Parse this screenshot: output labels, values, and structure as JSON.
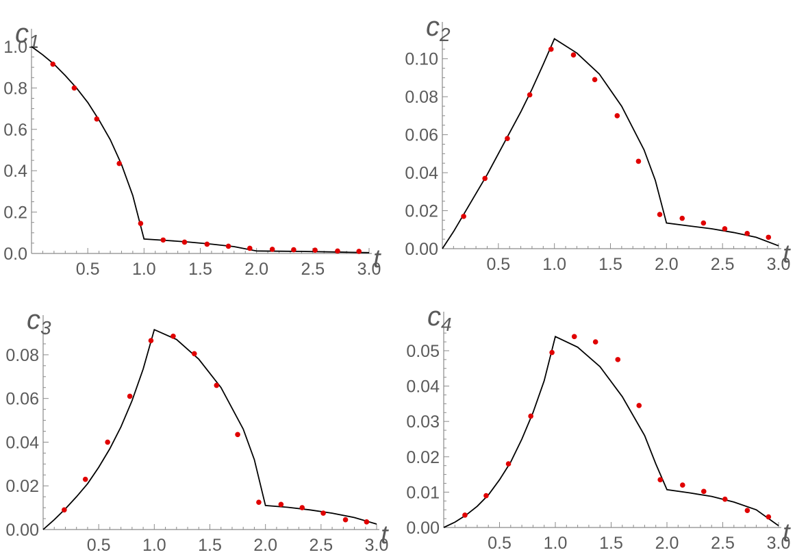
{
  "chart_data": [
    {
      "type": "line",
      "title": "",
      "ylabel": "c",
      "ylabel_sub": "1",
      "xlabel": "t",
      "xlim": [
        0,
        3.0
      ],
      "ylim": [
        0,
        1.0
      ],
      "grid": false,
      "xticks": [
        "0.5",
        "1.0",
        "1.5",
        "2.0",
        "2.5",
        "3.0"
      ],
      "yticks": [
        "0.0",
        "0.2",
        "0.4",
        "0.6",
        "0.8",
        "1.0"
      ],
      "series": [
        {
          "kind": "line",
          "x": [
            0,
            0.1,
            0.2,
            0.3,
            0.4,
            0.5,
            0.6,
            0.7,
            0.8,
            0.9,
            1.0,
            1.0,
            1.2,
            1.4,
            1.6,
            1.8,
            2.0,
            2.0,
            2.2,
            2.4,
            2.6,
            2.8,
            3.0
          ],
          "y": [
            1.0,
            0.96,
            0.915,
            0.86,
            0.8,
            0.73,
            0.645,
            0.55,
            0.43,
            0.28,
            0.07,
            0.07,
            0.063,
            0.055,
            0.045,
            0.033,
            0.012,
            0.012,
            0.011,
            0.01,
            0.008,
            0.006,
            0.004
          ]
        },
        {
          "kind": "scatter",
          "x": [
            0.19,
            0.38,
            0.58,
            0.78,
            0.97,
            1.17,
            1.36,
            1.56,
            1.75,
            1.94,
            2.14,
            2.33,
            2.52,
            2.72,
            2.91
          ],
          "y": [
            0.915,
            0.8,
            0.65,
            0.435,
            0.145,
            0.065,
            0.055,
            0.045,
            0.035,
            0.025,
            0.02,
            0.018,
            0.016,
            0.012,
            0.01
          ]
        }
      ]
    },
    {
      "type": "line",
      "title": "",
      "ylabel": "c",
      "ylabel_sub": "2",
      "xlabel": "t",
      "xlim": [
        0,
        3.0
      ],
      "ylim": [
        0,
        0.11
      ],
      "grid": false,
      "xticks": [
        "0.5",
        "1.0",
        "1.5",
        "2.0",
        "2.5",
        "3.0"
      ],
      "yticks": [
        "0.00",
        "0.02",
        "0.04",
        "0.06",
        "0.08",
        "0.10"
      ],
      "series": [
        {
          "kind": "line",
          "x": [
            0,
            0.1,
            0.2,
            0.3,
            0.4,
            0.5,
            0.6,
            0.7,
            0.8,
            0.9,
            1.0,
            1.2,
            1.4,
            1.6,
            1.8,
            1.9,
            2.0,
            2.2,
            2.4,
            2.6,
            2.8,
            3.0
          ],
          "y": [
            0,
            0.009,
            0.019,
            0.029,
            0.039,
            0.05,
            0.061,
            0.072,
            0.084,
            0.097,
            0.1105,
            0.103,
            0.092,
            0.075,
            0.052,
            0.036,
            0.0135,
            0.012,
            0.0105,
            0.0085,
            0.006,
            0.0015
          ]
        },
        {
          "kind": "scatter",
          "x": [
            0.19,
            0.38,
            0.58,
            0.78,
            0.97,
            1.17,
            1.36,
            1.56,
            1.75,
            1.94,
            2.14,
            2.33,
            2.52,
            2.72,
            2.91
          ],
          "y": [
            0.017,
            0.037,
            0.058,
            0.081,
            0.105,
            0.102,
            0.089,
            0.07,
            0.046,
            0.018,
            0.016,
            0.0135,
            0.0105,
            0.008,
            0.006
          ]
        }
      ]
    },
    {
      "type": "line",
      "title": "",
      "ylabel": "c",
      "ylabel_sub": "3",
      "xlabel": "t",
      "xlim": [
        0,
        3.0
      ],
      "ylim": [
        0,
        0.09
      ],
      "grid": false,
      "xticks": [
        "0.5",
        "1.0",
        "1.5",
        "2.0",
        "2.5",
        "3.0"
      ],
      "yticks": [
        "0.00",
        "0.02",
        "0.04",
        "0.06",
        "0.08"
      ],
      "series": [
        {
          "kind": "line",
          "x": [
            0,
            0.1,
            0.2,
            0.3,
            0.4,
            0.5,
            0.6,
            0.7,
            0.8,
            0.9,
            1.0,
            1.2,
            1.4,
            1.6,
            1.8,
            1.9,
            2.0,
            2.2,
            2.4,
            2.6,
            2.8,
            3.0
          ],
          "y": [
            0,
            0.0045,
            0.0095,
            0.015,
            0.021,
            0.0285,
            0.037,
            0.047,
            0.059,
            0.0735,
            0.0915,
            0.087,
            0.078,
            0.065,
            0.046,
            0.032,
            0.011,
            0.0102,
            0.009,
            0.0075,
            0.0055,
            0.0025
          ]
        },
        {
          "kind": "scatter",
          "x": [
            0.19,
            0.38,
            0.58,
            0.78,
            0.97,
            1.17,
            1.36,
            1.56,
            1.75,
            1.94,
            2.14,
            2.33,
            2.52,
            2.72,
            2.91
          ],
          "y": [
            0.009,
            0.023,
            0.04,
            0.061,
            0.0865,
            0.0885,
            0.0805,
            0.066,
            0.0435,
            0.0125,
            0.0115,
            0.01,
            0.0075,
            0.0045,
            0.0035
          ]
        }
      ]
    },
    {
      "type": "line",
      "title": "",
      "ylabel": "c",
      "ylabel_sub": "4",
      "xlabel": "t",
      "xlim": [
        0,
        3.0
      ],
      "ylim": [
        0,
        0.056
      ],
      "grid": false,
      "xticks": [
        "0.5",
        "1.0",
        "1.5",
        "2.0",
        "2.5",
        "3.0"
      ],
      "yticks": [
        "0.00",
        "0.01",
        "0.02",
        "0.03",
        "0.04",
        "0.05"
      ],
      "series": [
        {
          "kind": "line",
          "x": [
            0,
            0.1,
            0.2,
            0.3,
            0.4,
            0.5,
            0.6,
            0.7,
            0.8,
            0.9,
            1.0,
            1.2,
            1.4,
            1.6,
            1.8,
            1.9,
            2.0,
            2.2,
            2.4,
            2.6,
            2.8,
            3.0
          ],
          "y": [
            0,
            0.0015,
            0.0035,
            0.006,
            0.0092,
            0.0135,
            0.0185,
            0.025,
            0.0325,
            0.0415,
            0.054,
            0.051,
            0.0455,
            0.037,
            0.026,
            0.018,
            0.0107,
            0.0098,
            0.0088,
            0.0072,
            0.005,
            0.0005
          ]
        },
        {
          "kind": "scatter",
          "x": [
            0.19,
            0.38,
            0.58,
            0.78,
            0.97,
            1.17,
            1.36,
            1.56,
            1.75,
            1.94,
            2.14,
            2.33,
            2.52,
            2.72,
            2.91
          ],
          "y": [
            0.0035,
            0.009,
            0.018,
            0.0315,
            0.0495,
            0.054,
            0.0525,
            0.0475,
            0.0345,
            0.0135,
            0.012,
            0.0102,
            0.008,
            0.0048,
            0.003
          ]
        }
      ]
    }
  ]
}
